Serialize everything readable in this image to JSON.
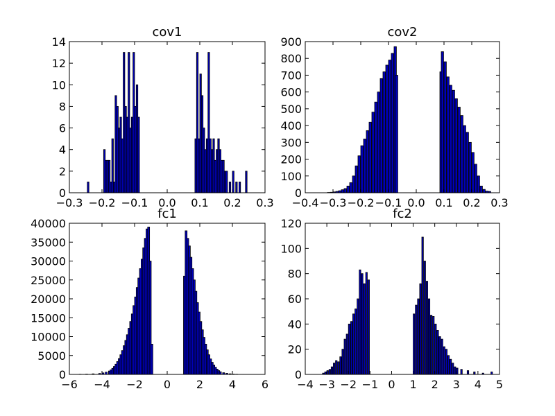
{
  "chart_data": [
    {
      "type": "bar",
      "title": "cov1",
      "xlim": [
        -0.3,
        0.3
      ],
      "ylim": [
        0,
        14
      ],
      "xticks": [
        -0.3,
        -0.2,
        -0.1,
        0.0,
        0.1,
        0.2,
        0.3
      ],
      "xtick_labels": [
        "−0.3",
        "−0.2",
        "−0.1",
        "0.0",
        "0.1",
        "0.2",
        "0.3"
      ],
      "yticks": [
        0,
        2,
        4,
        6,
        8,
        10,
        12,
        14
      ],
      "ytick_labels": [
        "0",
        "2",
        "4",
        "6",
        "8",
        "10",
        "12",
        "14"
      ],
      "bin_width": 0.005,
      "x": [
        -0.245,
        -0.195,
        -0.19,
        -0.185,
        -0.18,
        -0.175,
        -0.17,
        -0.165,
        -0.16,
        -0.155,
        -0.15,
        -0.145,
        -0.14,
        -0.135,
        -0.13,
        -0.125,
        -0.12,
        -0.115,
        -0.11,
        -0.105,
        -0.1,
        -0.095,
        -0.09,
        0.085,
        0.09,
        0.095,
        0.1,
        0.105,
        0.11,
        0.115,
        0.12,
        0.125,
        0.13,
        0.135,
        0.14,
        0.145,
        0.15,
        0.155,
        0.16,
        0.165,
        0.17,
        0.175,
        0.18,
        0.19,
        0.2,
        0.21,
        0.22,
        0.24
      ],
      "values": [
        1,
        4,
        3,
        3,
        3,
        1,
        5,
        1,
        9,
        8,
        6,
        7,
        5,
        13,
        8,
        7,
        13,
        6,
        7,
        13,
        8,
        10,
        7,
        5,
        13,
        5,
        11,
        9,
        6,
        4,
        5,
        13,
        5,
        4,
        5,
        3,
        4,
        5,
        4,
        3,
        3,
        2,
        2,
        1,
        2,
        1,
        1,
        2
      ]
    },
    {
      "type": "bar",
      "title": "cov2",
      "xlim": [
        -0.4,
        0.3
      ],
      "ylim": [
        0,
        900
      ],
      "xticks": [
        -0.4,
        -0.3,
        -0.2,
        -0.1,
        0.0,
        0.1,
        0.2,
        0.3
      ],
      "xtick_labels": [
        "−0.4",
        "−0.3",
        "−0.2",
        "−0.1",
        "0.0",
        "0.1",
        "0.2",
        "0.3"
      ],
      "yticks": [
        0,
        100,
        200,
        300,
        400,
        500,
        600,
        700,
        800,
        900
      ],
      "ytick_labels": [
        "0",
        "100",
        "200",
        "300",
        "400",
        "500",
        "600",
        "700",
        "800",
        "900"
      ],
      "bin_width": 0.0085,
      "x": [
        -0.32,
        -0.31,
        -0.3,
        -0.29,
        -0.28,
        -0.27,
        -0.26,
        -0.25,
        -0.24,
        -0.23,
        -0.22,
        -0.21,
        -0.2,
        -0.19,
        -0.18,
        -0.17,
        -0.16,
        -0.15,
        -0.14,
        -0.13,
        -0.12,
        -0.11,
        -0.1,
        -0.09,
        -0.08,
        -0.075,
        0.085,
        0.09,
        0.1,
        0.11,
        0.12,
        0.13,
        0.14,
        0.15,
        0.16,
        0.17,
        0.18,
        0.19,
        0.2,
        0.21,
        0.22,
        0.23,
        0.24,
        0.25,
        0.26
      ],
      "values": [
        2,
        3,
        5,
        8,
        12,
        18,
        25,
        40,
        60,
        100,
        160,
        220,
        280,
        320,
        370,
        420,
        480,
        540,
        600,
        680,
        720,
        760,
        790,
        830,
        870,
        700,
        720,
        840,
        780,
        690,
        640,
        610,
        560,
        510,
        460,
        400,
        360,
        300,
        240,
        170,
        100,
        40,
        20,
        10,
        8
      ]
    },
    {
      "type": "bar",
      "title": "fc1",
      "xlim": [
        -6,
        6
      ],
      "ylim": [
        0,
        40000
      ],
      "xticks": [
        -6,
        -4,
        -2,
        0,
        2,
        4,
        6
      ],
      "xtick_labels": [
        "−6",
        "−4",
        "−2",
        "0",
        "2",
        "4",
        "6"
      ],
      "yticks": [
        0,
        5000,
        10000,
        15000,
        20000,
        25000,
        30000,
        35000,
        40000
      ],
      "ytick_labels": [
        "0",
        "5000",
        "10000",
        "15000",
        "20000",
        "25000",
        "30000",
        "35000",
        "40000"
      ],
      "bin_width": 0.12,
      "x": [
        -5.4,
        -5.0,
        -4.6,
        -4.2,
        -4.0,
        -3.8,
        -3.6,
        -3.5,
        -3.4,
        -3.3,
        -3.2,
        -3.1,
        -3.0,
        -2.9,
        -2.8,
        -2.7,
        -2.6,
        -2.5,
        -2.4,
        -2.3,
        -2.2,
        -2.1,
        -2.0,
        -1.9,
        -1.8,
        -1.7,
        -1.6,
        -1.5,
        -1.4,
        -1.3,
        -1.2,
        -1.1,
        -1.0,
        1.0,
        1.1,
        1.2,
        1.3,
        1.4,
        1.5,
        1.6,
        1.7,
        1.8,
        1.9,
        2.0,
        2.1,
        2.2,
        2.3,
        2.4,
        2.5,
        2.6,
        2.7,
        2.8,
        2.9,
        3.0,
        3.1,
        3.2,
        3.4,
        3.6,
        3.8,
        4.0,
        4.2,
        4.6
      ],
      "values": [
        50,
        80,
        150,
        250,
        400,
        600,
        900,
        1200,
        1600,
        2100,
        2700,
        3400,
        4200,
        5200,
        6300,
        7600,
        9000,
        10500,
        12200,
        14000,
        16000,
        18200,
        20500,
        23000,
        25500,
        28000,
        30500,
        33500,
        36000,
        38500,
        39000,
        30000,
        8000,
        26000,
        38000,
        36000,
        34000,
        31000,
        28000,
        25000,
        22000,
        19000,
        16500,
        14000,
        11800,
        9800,
        8000,
        6500,
        5200,
        4100,
        3200,
        2500,
        1900,
        1400,
        1000,
        700,
        450,
        280,
        160,
        90,
        50,
        20
      ]
    },
    {
      "type": "bar",
      "title": "fc2",
      "xlim": [
        -4,
        5
      ],
      "ylim": [
        0,
        120
      ],
      "xticks": [
        -4,
        -3,
        -2,
        -1,
        0,
        1,
        2,
        3,
        4,
        5
      ],
      "xtick_labels": [
        "−4",
        "−3",
        "−2",
        "−1",
        "0",
        "1",
        "2",
        "3",
        "4",
        "5"
      ],
      "yticks": [
        0,
        20,
        40,
        60,
        80,
        100,
        120
      ],
      "ytick_labels": [
        "0",
        "20",
        "40",
        "60",
        "80",
        "100",
        "120"
      ],
      "bin_width": 0.075,
      "x": [
        -3.2,
        -3.1,
        -3.0,
        -2.9,
        -2.8,
        -2.7,
        -2.6,
        -2.5,
        -2.4,
        -2.3,
        -2.2,
        -2.1,
        -2.0,
        -1.9,
        -1.8,
        -1.7,
        -1.6,
        -1.5,
        -1.4,
        -1.3,
        -1.2,
        -1.1,
        1.0,
        1.1,
        1.2,
        1.3,
        1.4,
        1.5,
        1.6,
        1.7,
        1.8,
        1.9,
        2.0,
        2.1,
        2.2,
        2.3,
        2.4,
        2.5,
        2.6,
        2.7,
        2.8,
        2.9,
        3.0,
        3.2,
        3.5,
        3.8,
        4.2,
        4.6
      ],
      "values": [
        1,
        2,
        3,
        4,
        6,
        9,
        11,
        10,
        14,
        20,
        28,
        32,
        40,
        42,
        48,
        52,
        60,
        83,
        80,
        72,
        81,
        75,
        48,
        55,
        60,
        72,
        109,
        90,
        74,
        60,
        47,
        46,
        40,
        35,
        30,
        28,
        22,
        20,
        15,
        12,
        9,
        6,
        5,
        4,
        3,
        2,
        1,
        2
      ]
    }
  ]
}
